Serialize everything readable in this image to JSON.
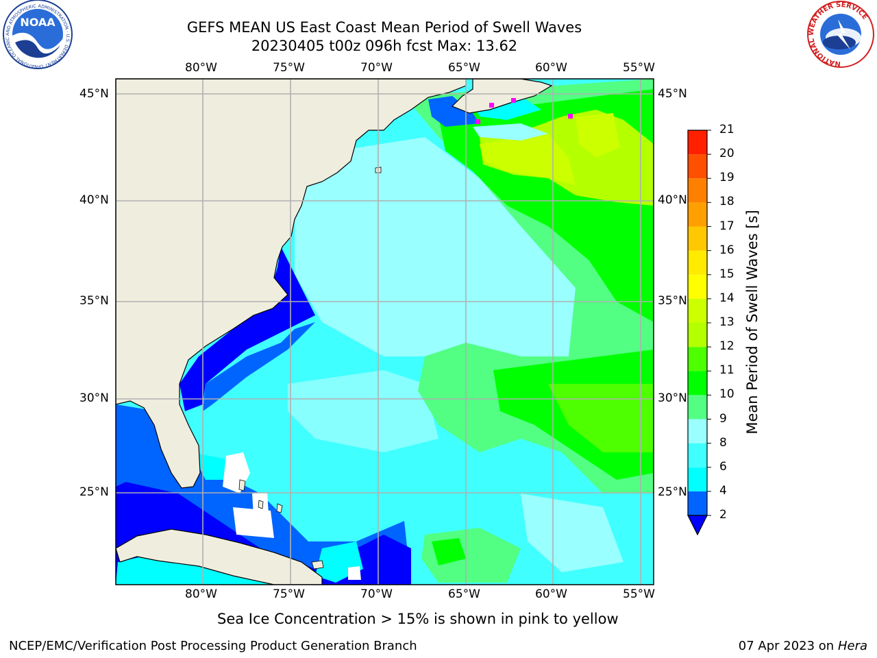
{
  "header": {
    "title_line1": "GEFS MEAN US East Coast Mean Period of Swell Waves",
    "title_line2": "20230405 t00z 096h fcst   Max: 13.62"
  },
  "map": {
    "lon_labels": [
      "80°W",
      "75°W",
      "70°W",
      "65°W",
      "60°W",
      "55°W"
    ],
    "lat_labels": [
      "45°N",
      "40°N",
      "35°N",
      "30°N",
      "25°N"
    ],
    "land_color": "#efedde",
    "grid_color": "#b0b0b0"
  },
  "colorbar": {
    "label": "Mean Period of Swell Waves [s]",
    "ticks": [
      "2",
      "4",
      "6",
      "8",
      "9",
      "10",
      "11",
      "12",
      "13",
      "14",
      "15",
      "16",
      "17",
      "18",
      "19",
      "20",
      "21"
    ],
    "colors": [
      "#0064ff",
      "#00ffff",
      "#40ffff",
      "#99ffff",
      "#52ff83",
      "#00ff00",
      "#4dff00",
      "#b4ff00",
      "#ccff00",
      "#ffff00",
      "#ffeb00",
      "#ffc800",
      "#ffa000",
      "#ff8000",
      "#ff5000",
      "#ff2000",
      "#ff0000"
    ],
    "under_color": "#0000ff"
  },
  "logos": {
    "noaa_text": "NOAA",
    "noaa_ring_text": "NATIONAL OCEANIC AND ATMOSPHERIC ADMINISTRATION · U.S. DEPARTMENT OF COMMERCE",
    "nws_ring_text": "NATIONAL WEATHER SERVICE"
  },
  "footer": {
    "note": "Sea Ice Concentration > 15% is shown in pink to yellow",
    "credit": "NCEP/EMC/Verification Post Processing Product Generation Branch",
    "date_prefix": "07 Apr 2023 on ",
    "date_host": "Hera"
  }
}
